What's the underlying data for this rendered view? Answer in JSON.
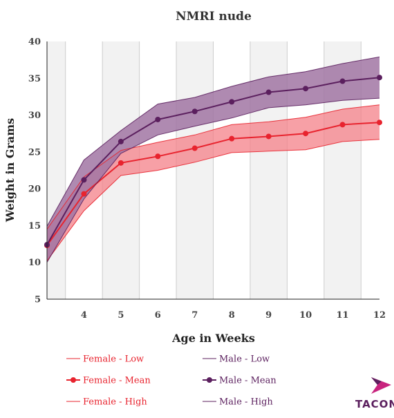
{
  "chart_data": {
    "type": "line",
    "title": "NMRI nude",
    "xlabel": "Age in Weeks",
    "ylabel": "Weight in Grams",
    "xlim": [
      3,
      12
    ],
    "ylim": [
      5,
      40
    ],
    "x_ticks": [
      4,
      5,
      6,
      7,
      8,
      9,
      10,
      11,
      12
    ],
    "y_ticks": [
      5,
      10,
      15,
      20,
      25,
      30,
      35,
      40
    ],
    "x": [
      3,
      4,
      5,
      6,
      7,
      8,
      9,
      10,
      11,
      12
    ],
    "grid": "alternating vertical bands",
    "legend_position": "bottom",
    "series": [
      {
        "name": "Female - Low",
        "color": "#e8232e",
        "values": [
          10.2,
          17.0,
          21.8,
          22.5,
          23.6,
          24.9,
          25.1,
          25.3,
          26.4,
          26.7
        ]
      },
      {
        "name": "Female - Mean",
        "color": "#e8232e",
        "values": [
          12.3,
          19.3,
          23.5,
          24.4,
          25.5,
          26.8,
          27.1,
          27.5,
          28.7,
          29.0
        ]
      },
      {
        "name": "Female - High",
        "color": "#e8232e",
        "values": [
          14.5,
          21.6,
          25.2,
          26.3,
          27.3,
          28.7,
          29.1,
          29.7,
          30.8,
          31.4
        ]
      },
      {
        "name": "Male - Low",
        "color": "#5b1f5e",
        "values": [
          10.0,
          18.6,
          24.8,
          27.3,
          28.5,
          29.6,
          31.0,
          31.4,
          32.0,
          32.3
        ]
      },
      {
        "name": "Male - Mean",
        "color": "#5b1f5e",
        "values": [
          12.4,
          21.2,
          26.4,
          29.4,
          30.5,
          31.8,
          33.1,
          33.6,
          34.6,
          35.1
        ]
      },
      {
        "name": "Male - High",
        "color": "#5b1f5e",
        "values": [
          14.9,
          23.9,
          27.9,
          31.5,
          32.4,
          33.9,
          35.2,
          35.9,
          37.0,
          37.9
        ]
      }
    ],
    "bands": [
      {
        "low": "Female - Low",
        "high": "Female - High",
        "color": "#f48088"
      },
      {
        "low": "Male - Low",
        "high": "Male - High",
        "color": "#a175a3"
      }
    ]
  },
  "logo": {
    "text": "TACON",
    "accent": "#c8237e",
    "text_color": "#5b1f5e"
  }
}
